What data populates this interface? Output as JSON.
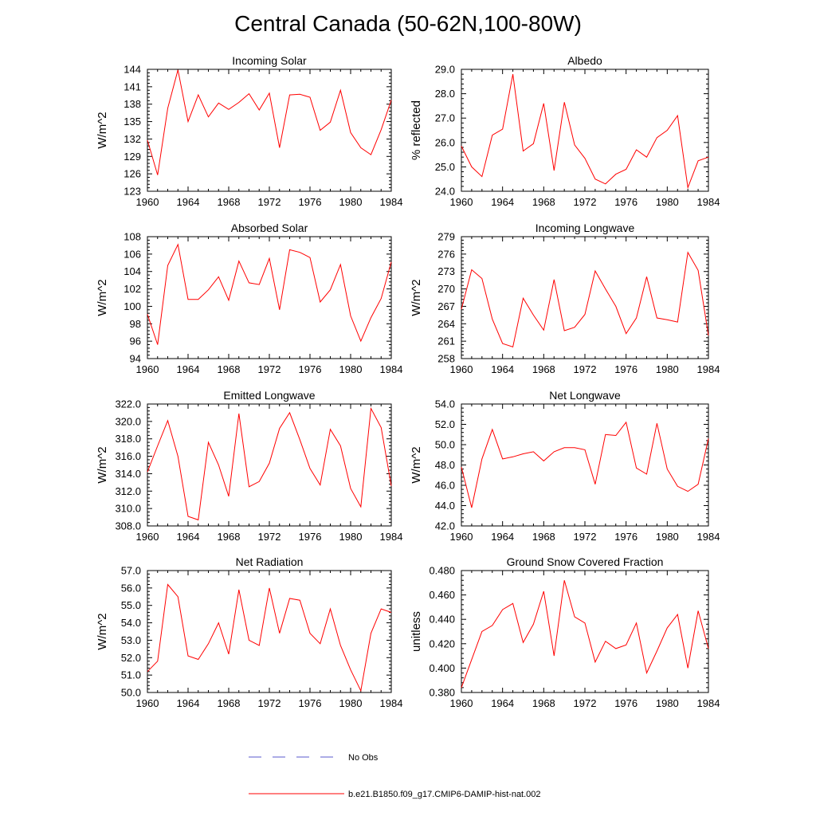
{
  "title": "Central Canada (50-62N,100-80W)",
  "legend": [
    {
      "label": "No Obs",
      "color": "#5a5acc",
      "dash": true
    },
    {
      "label": "b.e21.B1850.f09_g17.CMIP6-DAMIP-hist-nat.002",
      "color": "#ff0000",
      "dash": false
    }
  ],
  "chart_data": [
    {
      "type": "line",
      "title": "Incoming Solar",
      "ylabel": "W/m^2",
      "xlim": [
        1960,
        1984
      ],
      "xticks": [
        1960,
        1964,
        1968,
        1972,
        1976,
        1980,
        1984
      ],
      "ylim": [
        123,
        144
      ],
      "yticks": [
        123,
        126,
        129,
        132,
        135,
        138,
        141,
        144
      ],
      "ydec": 0,
      "x": [
        1960,
        1961,
        1962,
        1963,
        1964,
        1965,
        1966,
        1967,
        1968,
        1969,
        1970,
        1971,
        1972,
        1973,
        1974,
        1975,
        1976,
        1977,
        1978,
        1979,
        1980,
        1981,
        1982,
        1983,
        1984
      ],
      "series": [
        {
          "color": "#ff0000",
          "values": [
            131.8,
            125.8,
            137.3,
            143.9,
            135.0,
            139.6,
            135.8,
            138.2,
            137.1,
            138.3,
            139.8,
            137.0,
            139.9,
            130.5,
            139.6,
            139.7,
            139.2,
            133.5,
            134.9,
            140.4,
            133.1,
            130.5,
            129.3,
            133.6,
            138.7
          ]
        }
      ]
    },
    {
      "type": "line",
      "title": "Albedo",
      "ylabel": "% reflected",
      "xlim": [
        1960,
        1984
      ],
      "xticks": [
        1960,
        1964,
        1968,
        1972,
        1976,
        1980,
        1984
      ],
      "ylim": [
        24.0,
        29.0
      ],
      "yticks": [
        24.0,
        25.0,
        26.0,
        27.0,
        28.0,
        29.0
      ],
      "ydec": 1,
      "x": [
        1960,
        1961,
        1962,
        1963,
        1964,
        1965,
        1966,
        1967,
        1968,
        1969,
        1970,
        1971,
        1972,
        1973,
        1974,
        1975,
        1976,
        1977,
        1978,
        1979,
        1980,
        1981,
        1982,
        1983,
        1984
      ],
      "series": [
        {
          "color": "#ff0000",
          "values": [
            25.85,
            25.0,
            24.6,
            26.3,
            26.55,
            28.8,
            25.65,
            25.95,
            27.6,
            24.85,
            27.65,
            25.9,
            25.35,
            24.5,
            24.3,
            24.7,
            24.9,
            25.7,
            25.4,
            26.2,
            26.5,
            27.1,
            24.15,
            25.25,
            25.4
          ]
        }
      ]
    },
    {
      "type": "line",
      "title": "Absorbed Solar",
      "ylabel": "W/m^2",
      "xlim": [
        1960,
        1984
      ],
      "xticks": [
        1960,
        1964,
        1968,
        1972,
        1976,
        1980,
        1984
      ],
      "ylim": [
        94,
        108
      ],
      "yticks": [
        94,
        96,
        98,
        100,
        102,
        104,
        106,
        108
      ],
      "ydec": 0,
      "x": [
        1960,
        1961,
        1962,
        1963,
        1964,
        1965,
        1966,
        1967,
        1968,
        1969,
        1970,
        1971,
        1972,
        1973,
        1974,
        1975,
        1976,
        1977,
        1978,
        1979,
        1980,
        1981,
        1982,
        1983,
        1984
      ],
      "series": [
        {
          "color": "#ff0000",
          "values": [
            99.1,
            95.6,
            104.7,
            107.1,
            100.8,
            100.8,
            101.9,
            103.4,
            100.7,
            105.2,
            102.7,
            102.5,
            105.5,
            99.6,
            106.5,
            106.2,
            105.6,
            100.5,
            101.9,
            104.8,
            98.9,
            96.0,
            98.7,
            100.9,
            105.1
          ]
        }
      ]
    },
    {
      "type": "line",
      "title": "Incoming Longwave",
      "ylabel": "W/m^2",
      "xlim": [
        1960,
        1984
      ],
      "xticks": [
        1960,
        1964,
        1968,
        1972,
        1976,
        1980,
        1984
      ],
      "ylim": [
        258,
        279
      ],
      "yticks": [
        258,
        261,
        264,
        267,
        270,
        273,
        276,
        279
      ],
      "ydec": 0,
      "x": [
        1960,
        1961,
        1962,
        1963,
        1964,
        1965,
        1966,
        1967,
        1968,
        1969,
        1970,
        1971,
        1972,
        1973,
        1974,
        1975,
        1976,
        1977,
        1978,
        1979,
        1980,
        1981,
        1982,
        1983,
        1984
      ],
      "series": [
        {
          "color": "#ff0000",
          "values": [
            266.5,
            273.3,
            271.8,
            264.8,
            260.6,
            260.0,
            268.4,
            265.5,
            262.9,
            271.6,
            262.8,
            263.4,
            265.6,
            273.1,
            270.0,
            267.0,
            262.3,
            265.0,
            272.1,
            265.0,
            264.7,
            264.3,
            276.3,
            273.2,
            262.0
          ]
        }
      ]
    },
    {
      "type": "line",
      "title": "Emitted Longwave",
      "ylabel": "W/m^2",
      "xlim": [
        1960,
        1984
      ],
      "xticks": [
        1960,
        1964,
        1968,
        1972,
        1976,
        1980,
        1984
      ],
      "ylim": [
        308.0,
        322.0
      ],
      "yticks": [
        308.0,
        310.0,
        312.0,
        314.0,
        316.0,
        318.0,
        320.0,
        322.0
      ],
      "ydec": 1,
      "x": [
        1960,
        1961,
        1962,
        1963,
        1964,
        1965,
        1966,
        1967,
        1968,
        1969,
        1970,
        1971,
        1972,
        1973,
        1974,
        1975,
        1976,
        1977,
        1978,
        1979,
        1980,
        1981,
        1982,
        1983,
        1984
      ],
      "series": [
        {
          "color": "#ff0000",
          "values": [
            314.2,
            317.2,
            320.1,
            316.0,
            309.1,
            308.7,
            317.6,
            315.0,
            311.4,
            320.9,
            312.5,
            313.1,
            315.2,
            319.2,
            321.0,
            317.9,
            314.6,
            312.7,
            319.1,
            317.2,
            312.3,
            310.2,
            321.5,
            319.3,
            312.6
          ]
        }
      ]
    },
    {
      "type": "line",
      "title": "Net Longwave",
      "ylabel": "W/m^2",
      "xlim": [
        1960,
        1984
      ],
      "xticks": [
        1960,
        1964,
        1968,
        1972,
        1976,
        1980,
        1984
      ],
      "ylim": [
        42.0,
        54.0
      ],
      "yticks": [
        42.0,
        44.0,
        46.0,
        48.0,
        50.0,
        52.0,
        54.0
      ],
      "ydec": 1,
      "x": [
        1960,
        1961,
        1962,
        1963,
        1964,
        1965,
        1966,
        1967,
        1968,
        1969,
        1970,
        1971,
        1972,
        1973,
        1974,
        1975,
        1976,
        1977,
        1978,
        1979,
        1980,
        1981,
        1982,
        1983,
        1984
      ],
      "series": [
        {
          "color": "#ff0000",
          "values": [
            47.8,
            43.8,
            48.6,
            51.5,
            48.6,
            48.8,
            49.1,
            49.3,
            48.4,
            49.3,
            49.7,
            49.7,
            49.5,
            46.1,
            51.0,
            50.9,
            52.2,
            47.7,
            47.1,
            52.1,
            47.6,
            45.9,
            45.4,
            46.1,
            50.6
          ]
        }
      ]
    },
    {
      "type": "line",
      "title": "Net Radiation",
      "ylabel": "W/m^2",
      "xlim": [
        1960,
        1984
      ],
      "xticks": [
        1960,
        1964,
        1968,
        1972,
        1976,
        1980,
        1984
      ],
      "ylim": [
        50.0,
        57.0
      ],
      "yticks": [
        50.0,
        51.0,
        52.0,
        53.0,
        54.0,
        55.0,
        56.0,
        57.0
      ],
      "ydec": 1,
      "x": [
        1960,
        1961,
        1962,
        1963,
        1964,
        1965,
        1966,
        1967,
        1968,
        1969,
        1970,
        1971,
        1972,
        1973,
        1974,
        1975,
        1976,
        1977,
        1978,
        1979,
        1980,
        1981,
        1982,
        1983,
        1984
      ],
      "series": [
        {
          "color": "#ff0000",
          "values": [
            51.2,
            51.8,
            56.2,
            55.5,
            52.1,
            51.9,
            52.8,
            54.0,
            52.2,
            55.9,
            53.0,
            52.7,
            56.0,
            53.4,
            55.4,
            55.3,
            53.4,
            52.8,
            54.8,
            52.7,
            51.3,
            50.1,
            53.4,
            54.8,
            54.6
          ]
        }
      ]
    },
    {
      "type": "line",
      "title": "Ground Snow Covered Fraction",
      "ylabel": "unitless",
      "xlim": [
        1960,
        1984
      ],
      "xticks": [
        1960,
        1964,
        1968,
        1972,
        1976,
        1980,
        1984
      ],
      "ylim": [
        0.38,
        0.48
      ],
      "yticks": [
        0.38,
        0.4,
        0.42,
        0.44,
        0.46,
        0.48
      ],
      "ydec": 3,
      "x": [
        1960,
        1961,
        1962,
        1963,
        1964,
        1965,
        1966,
        1967,
        1968,
        1969,
        1970,
        1971,
        1972,
        1973,
        1974,
        1975,
        1976,
        1977,
        1978,
        1979,
        1980,
        1981,
        1982,
        1983,
        1984
      ],
      "series": [
        {
          "color": "#ff0000",
          "values": [
            0.384,
            0.407,
            0.43,
            0.435,
            0.448,
            0.453,
            0.421,
            0.436,
            0.463,
            0.41,
            0.472,
            0.442,
            0.437,
            0.405,
            0.422,
            0.416,
            0.419,
            0.437,
            0.396,
            0.414,
            0.433,
            0.444,
            0.4,
            0.447,
            0.416
          ]
        }
      ]
    }
  ]
}
